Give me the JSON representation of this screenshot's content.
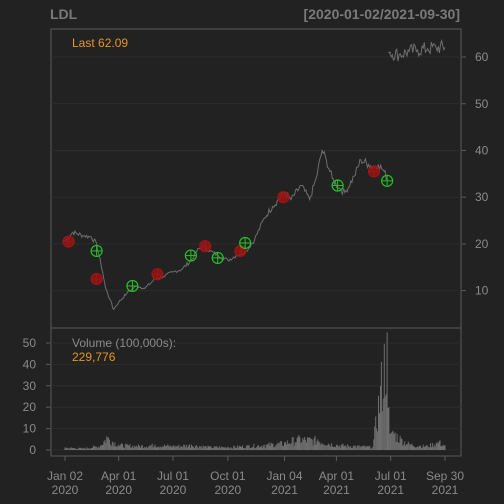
{
  "header": {
    "symbol": "LDL",
    "date_range": "[2020-01-02/2021-09-30]"
  },
  "price_panel": {
    "last_label": "Last 62.09"
  },
  "volume_panel": {
    "label": "Volume (100,000s):",
    "last_value": "229,776"
  },
  "colors": {
    "background": "#222222",
    "panel_border": "#5a5a5a",
    "grid": "#2c2c2c",
    "price_line": "#6e6e6e",
    "axis_text": "#8a8a8a",
    "header_text": "#7a7a7a",
    "accent": "#e6961e",
    "buy_marker": "#22c322",
    "sell_marker": "#a01414"
  },
  "chart_data": [
    {
      "type": "line",
      "title": "LDL",
      "subtitle": "[2020-01-02/2021-09-30]",
      "x_ticks": [
        "Jan 02\n2020",
        "Apr 01\n2020",
        "Jul 01\n2020",
        "Oct 01\n2020",
        "Jan 04\n2021",
        "Apr 01\n2021",
        "Jul 01\n2021",
        "Sep 30\n2021"
      ],
      "ylim": [
        2,
        66
      ],
      "y_ticks": [
        10,
        20,
        30,
        40,
        50,
        60
      ],
      "series": [
        {
          "values": [
            [
              "2020-01-02",
              20.5
            ],
            [
              "2020-01-15",
              22.5
            ],
            [
              "2020-02-01",
              21.8
            ],
            [
              "2020-02-15",
              21.5
            ],
            [
              "2020-02-24",
              20.0
            ],
            [
              "2020-03-05",
              14.0
            ],
            [
              "2020-03-10",
              10.5
            ],
            [
              "2020-03-18",
              8.0
            ],
            [
              "2020-03-23",
              6.0
            ],
            [
              "2020-04-01",
              7.5
            ],
            [
              "2020-04-15",
              9.5
            ],
            [
              "2020-05-01",
              11.0
            ],
            [
              "2020-05-15",
              10.5
            ],
            [
              "2020-06-01",
              12.5
            ],
            [
              "2020-06-15",
              13.0
            ],
            [
              "2020-07-01",
              14.0
            ],
            [
              "2020-07-15",
              14.5
            ],
            [
              "2020-08-01",
              16.5
            ],
            [
              "2020-08-10",
              18.5
            ],
            [
              "2020-08-20",
              19.5
            ],
            [
              "2020-09-01",
              18.5
            ],
            [
              "2020-09-15",
              17.5
            ],
            [
              "2020-10-01",
              16.5
            ],
            [
              "2020-10-15",
              17.5
            ],
            [
              "2020-11-01",
              18.5
            ],
            [
              "2020-11-15",
              21.0
            ],
            [
              "2020-12-01",
              25.5
            ],
            [
              "2020-12-15",
              28.0
            ],
            [
              "2021-01-04",
              31.0
            ],
            [
              "2021-01-15",
              29.5
            ],
            [
              "2021-02-01",
              32.5
            ],
            [
              "2021-02-15",
              29.5
            ],
            [
              "2021-02-26",
              34.0
            ],
            [
              "2021-03-08",
              40.0
            ],
            [
              "2021-03-15",
              38.0
            ],
            [
              "2021-03-25",
              34.0
            ],
            [
              "2021-04-05",
              32.0
            ],
            [
              "2021-04-15",
              31.0
            ],
            [
              "2021-05-01",
              34.5
            ],
            [
              "2021-05-12",
              38.0
            ],
            [
              "2021-05-25",
              37.0
            ],
            [
              "2021-06-01",
              36.5
            ],
            [
              "2021-06-10",
              37.0
            ],
            [
              "2021-06-20",
              35.5
            ],
            [
              "2021-06-25",
              34.0
            ],
            [
              "2021-06-28",
              61.0
            ],
            [
              "2021-07-15",
              60.5
            ],
            [
              "2021-08-01",
              61.2
            ],
            [
              "2021-08-15",
              61.5
            ],
            [
              "2021-09-01",
              61.8
            ],
            [
              "2021-09-15",
              62.0
            ],
            [
              "2021-09-30",
              62.09
            ]
          ]
        }
      ],
      "markers": [
        {
          "date": "2020-01-08",
          "value": 20.5,
          "kind": "sell"
        },
        {
          "date": "2020-02-24",
          "value": 18.5,
          "kind": "buy"
        },
        {
          "date": "2020-02-24",
          "value": 12.5,
          "kind": "sell"
        },
        {
          "date": "2020-04-24",
          "value": 11.0,
          "kind": "buy"
        },
        {
          "date": "2020-06-05",
          "value": 13.5,
          "kind": "sell"
        },
        {
          "date": "2020-07-31",
          "value": 17.5,
          "kind": "buy"
        },
        {
          "date": "2020-08-24",
          "value": 19.5,
          "kind": "sell"
        },
        {
          "date": "2020-09-14",
          "value": 17.0,
          "kind": "buy"
        },
        {
          "date": "2020-10-22",
          "value": 18.5,
          "kind": "sell"
        },
        {
          "date": "2020-10-30",
          "value": 20.2,
          "kind": "buy"
        },
        {
          "date": "2021-01-02",
          "value": 30.0,
          "kind": "sell"
        },
        {
          "date": "2021-04-03",
          "value": 32.5,
          "kind": "buy"
        },
        {
          "date": "2021-06-03",
          "value": 35.5,
          "kind": "sell"
        },
        {
          "date": "2021-06-25",
          "value": 33.5,
          "kind": "buy"
        }
      ]
    },
    {
      "type": "bar",
      "ylabel": "Volume (100,000s)",
      "ylim": [
        0,
        57
      ],
      "y_ticks": [
        0,
        10,
        20,
        30,
        40,
        50
      ],
      "values": [
        [
          "2020-01-02",
          1.2
        ],
        [
          "2020-02-01",
          0.8
        ],
        [
          "2020-03-01",
          2.0
        ],
        [
          "2020-03-12",
          6.5
        ],
        [
          "2020-04-01",
          2.5
        ],
        [
          "2020-05-01",
          2.0
        ],
        [
          "2020-06-01",
          2.5
        ],
        [
          "2020-07-01",
          2.0
        ],
        [
          "2020-08-01",
          2.5
        ],
        [
          "2020-09-01",
          1.5
        ],
        [
          "2020-10-01",
          1.5
        ],
        [
          "2020-11-01",
          2.0
        ],
        [
          "2020-12-01",
          2.5
        ],
        [
          "2021-01-04",
          3.5
        ],
        [
          "2021-01-25",
          5.5
        ],
        [
          "2021-03-01",
          5.0
        ],
        [
          "2021-04-01",
          2.5
        ],
        [
          "2021-05-01",
          2.0
        ],
        [
          "2021-06-01",
          1.5
        ],
        [
          "2021-06-25",
          55.0
        ],
        [
          "2021-06-28",
          20.0
        ],
        [
          "2021-07-05",
          9.0
        ],
        [
          "2021-07-20",
          5.0
        ],
        [
          "2021-08-01",
          3.0
        ],
        [
          "2021-08-20",
          2.0
        ],
        [
          "2021-09-01",
          2.0
        ],
        [
          "2021-09-20",
          4.0
        ],
        [
          "2021-09-30",
          2.3
        ]
      ]
    }
  ]
}
